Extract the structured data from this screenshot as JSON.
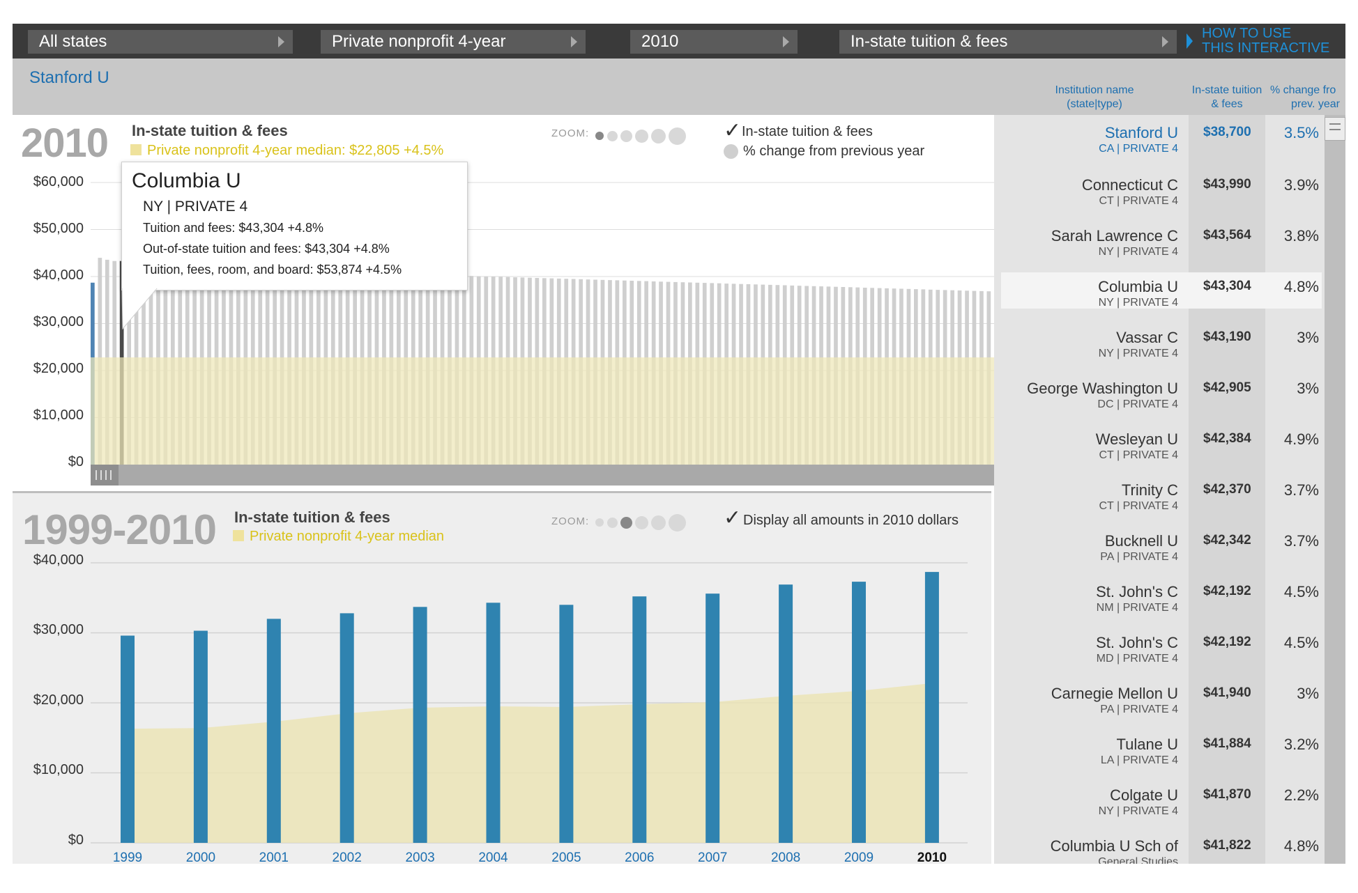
{
  "filters": {
    "state": "All states",
    "sector": "Private nonprofit 4-year",
    "year": "2010",
    "measure": "In-state tuition & fees"
  },
  "how_to": [
    "HOW TO USE",
    "THIS INTERACTIVE"
  ],
  "selected_institution": "Stanford U",
  "upper": {
    "year": "2010",
    "title": "In-state tuition & fees",
    "median_label": "Private nonprofit 4-year median: $22,805 +4.5%",
    "zoom_label": "ZOOM:",
    "check1": "In-state tuition & fees",
    "check2": "% change from previous year",
    "y_ticks": [
      "$60,000",
      "$50,000",
      "$40,000",
      "$30,000",
      "$20,000",
      "$10,000",
      "$0"
    ]
  },
  "tooltip": {
    "name": "Columbia U",
    "sub": "NY | PRIVATE 4",
    "line1": "Tuition and fees: $43,304 +4.8%",
    "line2": "Out-of-state tuition and fees: $43,304 +4.8%",
    "line3": "Tuition, fees, room, and board: $53,874 +4.5%"
  },
  "lower": {
    "years_label": "1999-2010",
    "title": "In-state tuition & fees",
    "median_label": "Private nonprofit 4-year median",
    "zoom_label": "ZOOM:",
    "check": "Display all amounts in 2010 dollars",
    "y_ticks": [
      "$40,000",
      "$30,000",
      "$20,000",
      "$10,000",
      "$0"
    ]
  },
  "list_headers": {
    "name": [
      "Institution name",
      "(state|type)"
    ],
    "amount": [
      "In-state tuition",
      "& fees"
    ],
    "pct": [
      "% change fro",
      "prev. year"
    ]
  },
  "list": [
    {
      "name": "Stanford U",
      "state": "CA | PRIVATE 4",
      "amount": "$38,700",
      "pct": "3.5%"
    },
    {
      "name": "Connecticut C",
      "state": "CT | PRIVATE 4",
      "amount": "$43,990",
      "pct": "3.9%"
    },
    {
      "name": "Sarah Lawrence C",
      "state": "NY | PRIVATE 4",
      "amount": "$43,564",
      "pct": "3.8%"
    },
    {
      "name": "Columbia U",
      "state": "NY | PRIVATE 4",
      "amount": "$43,304",
      "pct": "4.8%"
    },
    {
      "name": "Vassar C",
      "state": "NY | PRIVATE 4",
      "amount": "$43,190",
      "pct": "3%"
    },
    {
      "name": "George Washington U",
      "state": "DC | PRIVATE 4",
      "amount": "$42,905",
      "pct": "3%"
    },
    {
      "name": "Wesleyan U",
      "state": "CT | PRIVATE 4",
      "amount": "$42,384",
      "pct": "4.9%"
    },
    {
      "name": "Trinity C",
      "state": "CT | PRIVATE 4",
      "amount": "$42,370",
      "pct": "3.7%"
    },
    {
      "name": "Bucknell U",
      "state": "PA | PRIVATE 4",
      "amount": "$42,342",
      "pct": "3.7%"
    },
    {
      "name": "St. John's C",
      "state": "NM | PRIVATE 4",
      "amount": "$42,192",
      "pct": "4.5%"
    },
    {
      "name": "St. John's C",
      "state": "MD | PRIVATE 4",
      "amount": "$42,192",
      "pct": "4.5%"
    },
    {
      "name": "Carnegie Mellon U",
      "state": "PA | PRIVATE 4",
      "amount": "$41,940",
      "pct": "3%"
    },
    {
      "name": "Tulane U",
      "state": "LA | PRIVATE 4",
      "amount": "$41,884",
      "pct": "3.2%"
    },
    {
      "name": "Colgate U",
      "state": "NY | PRIVATE 4",
      "amount": "$41,870",
      "pct": "2.2%"
    },
    {
      "name": "Columbia U Sch of",
      "state": "General Studies",
      "amount": "$41,822",
      "pct": "4.8%"
    }
  ],
  "colors": {
    "accent": "#1d6fb0",
    "bar": "#2f83b0",
    "median": "#efe7b8",
    "gray_bar": "#cccccc"
  },
  "chart_data": [
    {
      "type": "bar",
      "title": "In-state tuition & fees",
      "note": "2010 in-state tuition & fees by institution (ranked); first bar Stanford U, selected bar Columbia U",
      "ylim": [
        0,
        60000
      ],
      "median": 22805,
      "first_value": 38700,
      "selected_value": 43304,
      "values": [
        38700,
        43990,
        43564,
        43304,
        43190,
        42905,
        42384,
        42370,
        42342,
        42192,
        42192,
        41940,
        41884,
        41870,
        41822
      ]
    },
    {
      "type": "bar",
      "title": "In-state tuition & fees",
      "categories": [
        "1999",
        "2000",
        "2001",
        "2002",
        "2003",
        "2004",
        "2005",
        "2006",
        "2007",
        "2008",
        "2009",
        "2010"
      ],
      "series": [
        {
          "name": "Stanford U",
          "values": [
            29600,
            30300,
            32000,
            32800,
            33700,
            34300,
            34000,
            35200,
            35600,
            36900,
            37300,
            38700
          ]
        },
        {
          "name": "Private nonprofit 4-year median",
          "type": "area",
          "values": [
            16300,
            16400,
            17300,
            18500,
            19300,
            19500,
            19400,
            19800,
            20100,
            21000,
            21700,
            22805
          ]
        }
      ],
      "ylim": [
        0,
        40000
      ]
    }
  ]
}
